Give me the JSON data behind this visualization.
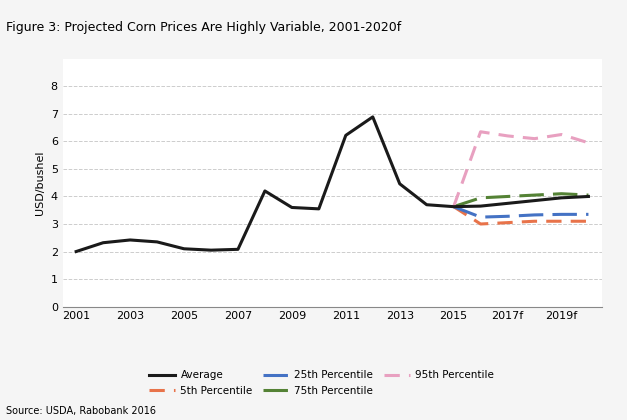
{
  "title": "Figure 3: Projected Corn Prices Are Highly Variable, 2001-2020f",
  "ylabel": "USD/bushel",
  "source": "Source: USDA, Rabobank 2016",
  "title_bg": "#a8c4d4",
  "bg_color": "#f5f5f5",
  "plot_bg": "#ffffff",
  "average": {
    "years": [
      2001,
      2002,
      2003,
      2004,
      2005,
      2006,
      2007,
      2008,
      2009,
      2010,
      2011,
      2012,
      2013,
      2014,
      2015,
      2016,
      2017,
      2018,
      2019,
      2020
    ],
    "values": [
      2.0,
      2.32,
      2.42,
      2.35,
      2.1,
      2.05,
      2.08,
      4.2,
      3.6,
      3.55,
      6.22,
      6.89,
      4.46,
      3.7,
      3.63,
      3.65,
      3.75,
      3.85,
      3.95,
      4.0
    ],
    "color": "#1a1a1a",
    "lw": 2.2,
    "label": "Average"
  },
  "p5th": {
    "years": [
      2015,
      2016,
      2017,
      2018,
      2019,
      2020
    ],
    "values": [
      3.63,
      3.0,
      3.05,
      3.1,
      3.1,
      3.1
    ],
    "color": "#e8734a",
    "lw": 2.2,
    "label": "5th Percentile"
  },
  "p25th": {
    "years": [
      2015,
      2016,
      2017,
      2018,
      2019,
      2020
    ],
    "values": [
      3.63,
      3.25,
      3.28,
      3.33,
      3.35,
      3.35
    ],
    "color": "#4472c4",
    "lw": 2.2,
    "label": "25th Percentile"
  },
  "p75th": {
    "years": [
      2015,
      2016,
      2017,
      2018,
      2019,
      2020
    ],
    "values": [
      3.63,
      3.95,
      4.0,
      4.05,
      4.1,
      4.05
    ],
    "color": "#548235",
    "lw": 2.2,
    "label": "75th Percentile"
  },
  "p95th": {
    "years": [
      2015,
      2016,
      2017,
      2018,
      2019,
      2020
    ],
    "values": [
      3.63,
      6.35,
      6.2,
      6.1,
      6.25,
      5.95
    ],
    "color": "#e8a0c0",
    "lw": 2.2,
    "label": "95th Percentile"
  },
  "xlim": [
    2000.5,
    2020.5
  ],
  "ylim": [
    0,
    9
  ],
  "yticks": [
    0,
    1,
    2,
    3,
    4,
    5,
    6,
    7,
    8
  ],
  "xtick_labels": [
    "2001",
    "2003",
    "2005",
    "2007",
    "2009",
    "2011",
    "2013",
    "2015",
    "2017f",
    "2019f"
  ],
  "xtick_positions": [
    2001,
    2003,
    2005,
    2007,
    2009,
    2011,
    2013,
    2015,
    2017,
    2019
  ]
}
